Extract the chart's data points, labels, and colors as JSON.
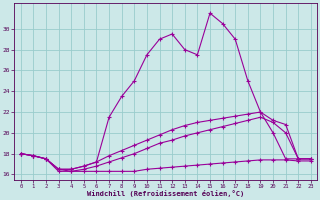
{
  "xlabel": "Windchill (Refroidissement éolien,°C)",
  "x": [
    0,
    1,
    2,
    3,
    4,
    5,
    6,
    7,
    8,
    9,
    10,
    11,
    12,
    13,
    14,
    15,
    16,
    17,
    18,
    19,
    20,
    21,
    22,
    23
  ],
  "line_bottom": [
    18.0,
    17.8,
    17.5,
    16.3,
    16.3,
    16.3,
    16.3,
    16.3,
    16.3,
    16.3,
    16.5,
    16.6,
    16.7,
    16.8,
    16.9,
    17.0,
    17.1,
    17.2,
    17.3,
    17.4,
    17.4,
    17.4,
    17.3,
    17.3
  ],
  "line_low": [
    18.0,
    17.8,
    17.5,
    16.5,
    16.3,
    16.5,
    16.8,
    17.2,
    17.6,
    18.0,
    18.5,
    19.0,
    19.3,
    19.7,
    20.0,
    20.3,
    20.6,
    20.9,
    21.2,
    21.5,
    21.0,
    20.0,
    17.5,
    17.5
  ],
  "line_mid": [
    18.0,
    17.8,
    17.5,
    16.5,
    16.5,
    16.8,
    17.2,
    17.8,
    18.3,
    18.8,
    19.3,
    19.8,
    20.3,
    20.7,
    21.0,
    21.2,
    21.4,
    21.6,
    21.8,
    22.0,
    21.2,
    20.8,
    17.5,
    17.5
  ],
  "line_high": [
    18.0,
    17.8,
    17.5,
    16.5,
    16.5,
    16.8,
    17.2,
    21.5,
    23.5,
    25.0,
    27.5,
    29.0,
    29.5,
    28.0,
    27.5,
    31.5,
    30.5,
    29.0,
    25.0,
    22.0,
    20.0,
    17.5,
    17.5,
    17.5
  ],
  "color": "#990099",
  "bg_color": "#cce8e8",
  "grid_color": "#99cccc",
  "ylim": [
    15.5,
    32.5
  ],
  "yticks": [
    16,
    18,
    20,
    22,
    24,
    26,
    28,
    30
  ],
  "xlim": [
    -0.5,
    23.5
  ],
  "xticks": [
    0,
    1,
    2,
    3,
    4,
    5,
    6,
    7,
    8,
    9,
    10,
    11,
    12,
    13,
    14,
    15,
    16,
    17,
    18,
    19,
    20,
    21,
    22,
    23
  ]
}
